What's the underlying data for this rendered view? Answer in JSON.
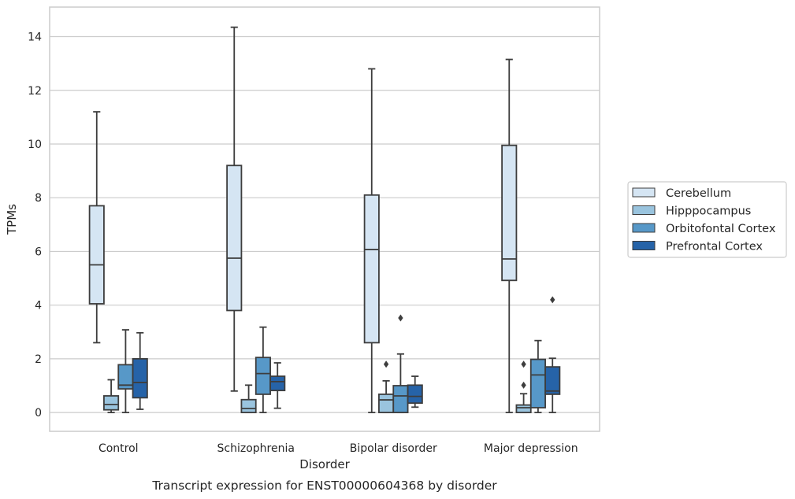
{
  "chart_data": {
    "type": "boxplot",
    "caption": "Transcript expression for ENST00000604368 by disorder",
    "xlabel": "Disorder",
    "ylabel": "TPMs",
    "ylim": [
      -0.7,
      15.1
    ],
    "yticks": [
      0,
      2,
      4,
      6,
      8,
      10,
      12,
      14
    ],
    "grid": true,
    "legend_placement": "right",
    "categories": [
      "Control",
      "Schizophrenia",
      "Bipolar disorder",
      "Major depression"
    ],
    "series": [
      {
        "name": "Cerebellum",
        "color": "#d5e5f3",
        "boxes": [
          {
            "whislo": 2.6,
            "q1": 4.05,
            "med": 5.5,
            "q3": 7.7,
            "whishi": 11.2,
            "fliers": []
          },
          {
            "whislo": 0.8,
            "q1": 3.8,
            "med": 5.75,
            "q3": 9.2,
            "whishi": 14.35,
            "fliers": []
          },
          {
            "whislo": 0.0,
            "q1": 2.6,
            "med": 6.07,
            "q3": 8.1,
            "whishi": 12.8,
            "fliers": []
          },
          {
            "whislo": 0.0,
            "q1": 4.92,
            "med": 5.72,
            "q3": 9.95,
            "whishi": 13.15,
            "fliers": []
          }
        ]
      },
      {
        "name": "Hipppocampus",
        "color": "#9ac4de",
        "boxes": [
          {
            "whislo": 0.0,
            "q1": 0.1,
            "med": 0.3,
            "q3": 0.62,
            "whishi": 1.22,
            "fliers": []
          },
          {
            "whislo": 0.0,
            "q1": 0.0,
            "med": 0.15,
            "q3": 0.48,
            "whishi": 1.02,
            "fliers": []
          },
          {
            "whislo": 0.0,
            "q1": 0.0,
            "med": 0.47,
            "q3": 0.68,
            "whishi": 1.18,
            "fliers": [
              1.8
            ]
          },
          {
            "whislo": 0.0,
            "q1": 0.0,
            "med": 0.18,
            "q3": 0.28,
            "whishi": 0.7,
            "fliers": [
              1.02,
              1.8
            ]
          }
        ]
      },
      {
        "name": "Orbitofontal Cortex",
        "color": "#5798c8",
        "boxes": [
          {
            "whislo": 0.0,
            "q1": 0.88,
            "med": 1.02,
            "q3": 1.78,
            "whishi": 3.08,
            "fliers": []
          },
          {
            "whislo": 0.0,
            "q1": 0.68,
            "med": 1.45,
            "q3": 2.05,
            "whishi": 3.18,
            "fliers": []
          },
          {
            "whislo": 0.0,
            "q1": 0.0,
            "med": 0.62,
            "q3": 1.0,
            "whishi": 2.18,
            "fliers": [
              3.52
            ]
          },
          {
            "whislo": 0.0,
            "q1": 0.18,
            "med": 1.4,
            "q3": 1.98,
            "whishi": 2.68,
            "fliers": []
          }
        ]
      },
      {
        "name": "Prefrontal Cortex",
        "color": "#2663a8",
        "boxes": [
          {
            "whislo": 0.12,
            "q1": 0.55,
            "med": 1.12,
            "q3": 2.0,
            "whishi": 2.97,
            "fliers": []
          },
          {
            "whislo": 0.16,
            "q1": 0.82,
            "med": 1.15,
            "q3": 1.35,
            "whishi": 1.85,
            "fliers": []
          },
          {
            "whislo": 0.2,
            "q1": 0.35,
            "med": 0.6,
            "q3": 1.02,
            "whishi": 1.35,
            "fliers": []
          },
          {
            "whislo": 0.0,
            "q1": 0.68,
            "med": 0.8,
            "q3": 1.7,
            "whishi": 2.02,
            "fliers": [
              4.2
            ]
          }
        ]
      }
    ]
  },
  "colors": {
    "grid": "#cccccc",
    "frame": "#cccccc",
    "line": "#3d3d3d"
  }
}
